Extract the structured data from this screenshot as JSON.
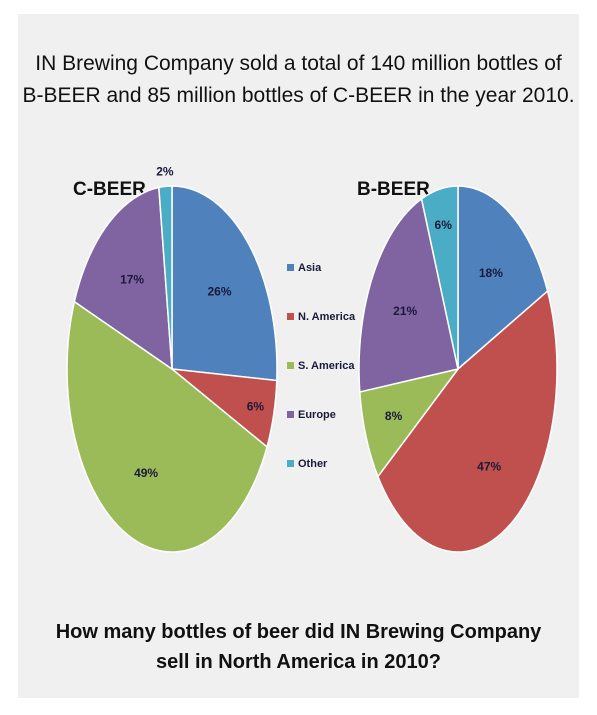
{
  "header": {
    "line1": "IN Brewing Company sold a total of 140 million bottles of",
    "line2": "B-BEER and 85 million bottles of C-BEER in the year 2010."
  },
  "question": {
    "line1": "How many bottles of beer did IN Brewing Company",
    "line2": "sell in North America in 2010?"
  },
  "chart_data": [
    {
      "type": "pie",
      "title": "C-BEER",
      "categories": [
        "Asia",
        "N. America",
        "S. America",
        "Europe",
        "Other"
      ],
      "values": [
        26,
        6,
        49,
        17,
        2
      ],
      "labels": [
        "26%",
        "6%",
        "49%",
        "17%",
        "2%"
      ],
      "colors": [
        "#4f81bd",
        "#c0504d",
        "#9bbb59",
        "#8064a2",
        "#4bacc6"
      ],
      "legend": "right"
    },
    {
      "type": "pie",
      "title": "B-BEER",
      "categories": [
        "Asia",
        "N. America",
        "S. America",
        "Europe",
        "Other"
      ],
      "values": [
        18,
        47,
        8,
        21,
        6
      ],
      "labels": [
        "18%",
        "47%",
        "8%",
        "21%",
        "6%"
      ],
      "colors": [
        "#4f81bd",
        "#c0504d",
        "#9bbb59",
        "#8064a2",
        "#4bacc6"
      ],
      "legend": "left"
    }
  ],
  "legend": {
    "items": [
      "Asia",
      "N. America",
      "S. America",
      "Europe",
      "Other"
    ],
    "colors": [
      "#4f81bd",
      "#c0504d",
      "#9bbb59",
      "#8064a2",
      "#4bacc6"
    ]
  }
}
